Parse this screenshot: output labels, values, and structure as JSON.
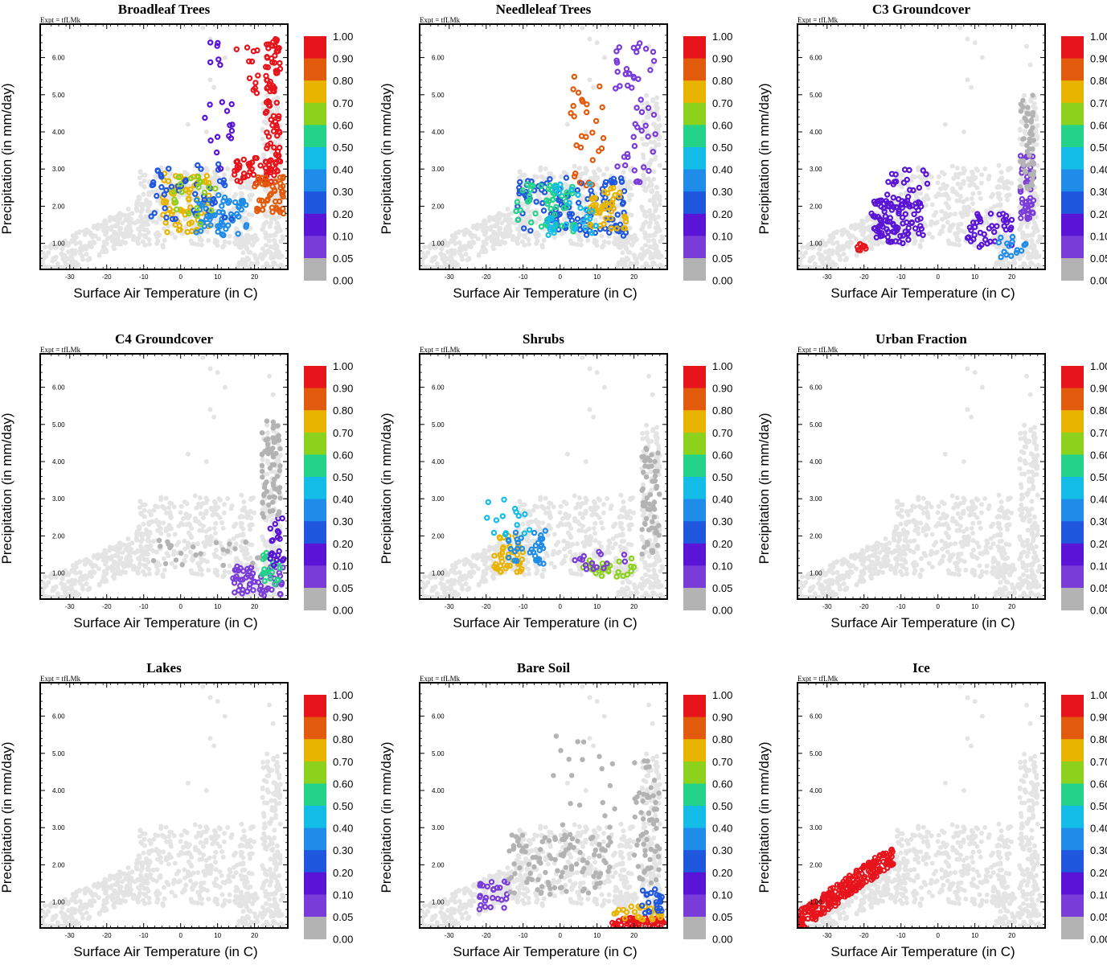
{
  "figure": {
    "expt_label": "Expt = tfLMk",
    "xlabel": "Surface Air Temperature (in C)",
    "ylabel": "Precipitation (in mm/day)",
    "x_ticks": [
      "-30",
      "-20",
      "-10",
      "0",
      "10",
      "20"
    ],
    "y_ticks": [
      "1.00",
      "2.00",
      "3.00",
      "4.00",
      "5.00",
      "6.00"
    ],
    "colorbar_labels": [
      "1.00",
      "0.90",
      "0.80",
      "0.70",
      "0.60",
      "0.50",
      "0.40",
      "0.30",
      "0.20",
      "0.10",
      "0.05",
      "0.00"
    ],
    "colorbar_bins": [
      {
        "label": "0.90-1.00",
        "color": "#e8141c"
      },
      {
        "label": "0.80-0.90",
        "color": "#e25a0c"
      },
      {
        "label": "0.70-0.80",
        "color": "#e8b400"
      },
      {
        "label": "0.60-0.70",
        "color": "#8cd11c"
      },
      {
        "label": "0.50-0.60",
        "color": "#25d28a"
      },
      {
        "label": "0.40-0.50",
        "color": "#14bde8"
      },
      {
        "label": "0.30-0.40",
        "color": "#1e8ce8"
      },
      {
        "label": "0.20-0.30",
        "color": "#1f57de"
      },
      {
        "label": "0.10-0.20",
        "color": "#5a14d6"
      },
      {
        "label": "0.05-0.10",
        "color": "#7a3cd8"
      },
      {
        "label": "0.00-0.05",
        "color": "#b3b3b3"
      }
    ],
    "background_color": "#e4e4e4",
    "zero_color": "#b3b3b3"
  },
  "chart_data": [
    {
      "type": "scatter",
      "title": "Broadleaf Trees",
      "xlabel": "Surface Air Temperature (in C)",
      "ylabel": "Precipitation (in mm/day)",
      "xlim": [
        -38,
        29
      ],
      "ylim": [
        0.3,
        6.9
      ],
      "clusters": [
        {
          "x": [
            -5,
            8
          ],
          "y": [
            1.3,
            2.9
          ],
          "value": 0.72,
          "n": 70
        },
        {
          "x": [
            4,
            18
          ],
          "y": [
            1.2,
            2.3
          ],
          "value": 0.35,
          "n": 60
        },
        {
          "x": [
            -8,
            14
          ],
          "y": [
            1.5,
            3.2
          ],
          "value": 0.25,
          "n": 45
        },
        {
          "x": [
            14,
            26
          ],
          "y": [
            2.6,
            3.3
          ],
          "value": 0.95,
          "n": 40
        },
        {
          "x": [
            23,
            27
          ],
          "y": [
            2.8,
            6.5
          ],
          "value": 0.95,
          "n": 90
        },
        {
          "x": [
            20,
            28
          ],
          "y": [
            1.8,
            2.8
          ],
          "value": 0.82,
          "n": 45
        },
        {
          "x": [
            -3,
            12
          ],
          "y": [
            1.4,
            2.8
          ],
          "value": 0.62,
          "n": 20
        },
        {
          "x": [
            6,
            14
          ],
          "y": [
            3.0,
            6.5
          ],
          "value": 0.18,
          "n": 20
        },
        {
          "x": [
            15,
            21
          ],
          "y": [
            4.5,
            6.5
          ],
          "value": 0.95,
          "n": 12
        }
      ]
    },
    {
      "type": "scatter",
      "title": "Needleleaf Trees",
      "xlabel": "Surface Air Temperature (in C)",
      "ylabel": "Precipitation (in mm/day)",
      "xlim": [
        -38,
        29
      ],
      "ylim": [
        0.3,
        6.9
      ],
      "clusters": [
        {
          "x": [
            -12,
            18
          ],
          "y": [
            1.2,
            2.8
          ],
          "value": 0.25,
          "n": 120
        },
        {
          "x": [
            -12,
            4
          ],
          "y": [
            1.3,
            2.6
          ],
          "value": 0.55,
          "n": 50
        },
        {
          "x": [
            8,
            18
          ],
          "y": [
            1.4,
            2.5
          ],
          "value": 0.75,
          "n": 45
        },
        {
          "x": [
            2,
            12
          ],
          "y": [
            2.4,
            5.5
          ],
          "value": 0.85,
          "n": 28
        },
        {
          "x": [
            15,
            26
          ],
          "y": [
            2.6,
            6.5
          ],
          "value": 0.08,
          "n": 50
        },
        {
          "x": [
            -4,
            10
          ],
          "y": [
            1.2,
            2.6
          ],
          "value": 0.45,
          "n": 30
        }
      ]
    },
    {
      "type": "scatter",
      "title": "C3 Groundcover",
      "xlabel": "Surface Air Temperature (in C)",
      "ylabel": "Precipitation (in mm/day)",
      "xlim": [
        -38,
        29
      ],
      "ylim": [
        0.3,
        6.9
      ],
      "clusters": [
        {
          "x": [
            -18,
            -4
          ],
          "y": [
            1.0,
            2.2
          ],
          "value": 0.2,
          "n": 100
        },
        {
          "x": [
            -22,
            -19
          ],
          "y": [
            0.8,
            1.0
          ],
          "value": 0.95,
          "n": 10
        },
        {
          "x": [
            22,
            26
          ],
          "y": [
            1.6,
            3.4
          ],
          "value": 0.08,
          "n": 45
        },
        {
          "x": [
            8,
            20
          ],
          "y": [
            0.9,
            1.8
          ],
          "value": 0.15,
          "n": 40
        },
        {
          "x": [
            16,
            24
          ],
          "y": [
            0.6,
            1.2
          ],
          "value": 0.4,
          "n": 15
        },
        {
          "x": [
            22,
            26
          ],
          "y": [
            2.4,
            5.0
          ],
          "value": 0.0,
          "n": 50
        },
        {
          "x": [
            -14,
            -2
          ],
          "y": [
            2.0,
            3.0
          ],
          "value": 0.15,
          "n": 20
        }
      ]
    },
    {
      "type": "scatter",
      "title": "C4 Groundcover",
      "xlabel": "Surface Air Temperature (in C)",
      "ylabel": "Precipitation (in mm/day)",
      "xlim": [
        -38,
        29
      ],
      "ylim": [
        0.3,
        6.9
      ],
      "clusters": [
        {
          "x": [
            14,
            28
          ],
          "y": [
            0.4,
            1.2
          ],
          "value": 0.08,
          "n": 60
        },
        {
          "x": [
            22,
            28
          ],
          "y": [
            0.6,
            1.6
          ],
          "value": 0.55,
          "n": 22
        },
        {
          "x": [
            24,
            28
          ],
          "y": [
            1.2,
            2.6
          ],
          "value": 0.12,
          "n": 22
        },
        {
          "x": [
            22,
            27
          ],
          "y": [
            2.5,
            5.1
          ],
          "value": 0.0,
          "n": 70
        },
        {
          "x": [
            -8,
            22
          ],
          "y": [
            1.2,
            1.9
          ],
          "value": 0.0,
          "n": 25
        }
      ]
    },
    {
      "type": "scatter",
      "title": "Shrubs",
      "xlabel": "Surface Air Temperature (in C)",
      "ylabel": "Precipitation (in mm/day)",
      "xlim": [
        -38,
        29
      ],
      "ylim": [
        0.3,
        6.9
      ],
      "clusters": [
        {
          "x": [
            -18,
            -10
          ],
          "y": [
            1.0,
            2.0
          ],
          "value": 0.75,
          "n": 40
        },
        {
          "x": [
            -14,
            -4
          ],
          "y": [
            1.2,
            2.2
          ],
          "value": 0.35,
          "n": 35
        },
        {
          "x": [
            -20,
            -8
          ],
          "y": [
            2.0,
            3.0
          ],
          "value": 0.5,
          "n": 15
        },
        {
          "x": [
            6,
            20
          ],
          "y": [
            0.9,
            1.4
          ],
          "value": 0.68,
          "n": 25
        },
        {
          "x": [
            4,
            20
          ],
          "y": [
            1.1,
            1.6
          ],
          "value": 0.1,
          "n": 15
        },
        {
          "x": [
            22,
            27
          ],
          "y": [
            1.5,
            4.4
          ],
          "value": 0.0,
          "n": 60
        }
      ]
    },
    {
      "type": "scatter",
      "title": "Urban Fraction",
      "xlabel": "Surface Air Temperature (in C)",
      "ylabel": "Precipitation (in mm/day)",
      "xlim": [
        -38,
        29
      ],
      "ylim": [
        0.3,
        6.9
      ],
      "clusters": []
    },
    {
      "type": "scatter",
      "title": "Lakes",
      "xlabel": "Surface Air Temperature (in C)",
      "ylabel": "Precipitation (in mm/day)",
      "xlim": [
        -38,
        29
      ],
      "ylim": [
        0.3,
        6.9
      ],
      "clusters": []
    },
    {
      "type": "scatter",
      "title": "Bare Soil",
      "xlabel": "Surface Air Temperature (in C)",
      "ylabel": "Precipitation (in mm/day)",
      "xlim": [
        -38,
        29
      ],
      "ylim": [
        0.3,
        6.9
      ],
      "clusters": [
        {
          "x": [
            14,
            28
          ],
          "y": [
            0.3,
            0.6
          ],
          "value": 0.95,
          "n": 55
        },
        {
          "x": [
            14,
            28
          ],
          "y": [
            0.5,
            0.9
          ],
          "value": 0.72,
          "n": 25
        },
        {
          "x": [
            22,
            28
          ],
          "y": [
            0.7,
            1.4
          ],
          "value": 0.3,
          "n": 22
        },
        {
          "x": [
            -22,
            -14
          ],
          "y": [
            0.8,
            1.6
          ],
          "value": 0.08,
          "n": 25
        },
        {
          "x": [
            -14,
            14
          ],
          "y": [
            1.2,
            2.8
          ],
          "value": 0.0,
          "n": 110
        },
        {
          "x": [
            20,
            27
          ],
          "y": [
            1.5,
            4.8
          ],
          "value": 0.0,
          "n": 60
        },
        {
          "x": [
            -2,
            16
          ],
          "y": [
            2.8,
            5.5
          ],
          "value": 0.0,
          "n": 20
        }
      ]
    },
    {
      "type": "scatter",
      "title": "Ice",
      "xlabel": "Surface Air Temperature (in C)",
      "ylabel": "Precipitation (in mm/day)",
      "xlim": [
        -38,
        29
      ],
      "ylim": [
        0.3,
        6.9
      ],
      "clusters": [
        {
          "band": true,
          "x": [
            -38,
            -12
          ],
          "y": [
            0.45,
            2.6
          ],
          "value": 0.95,
          "n": 220
        }
      ]
    }
  ]
}
